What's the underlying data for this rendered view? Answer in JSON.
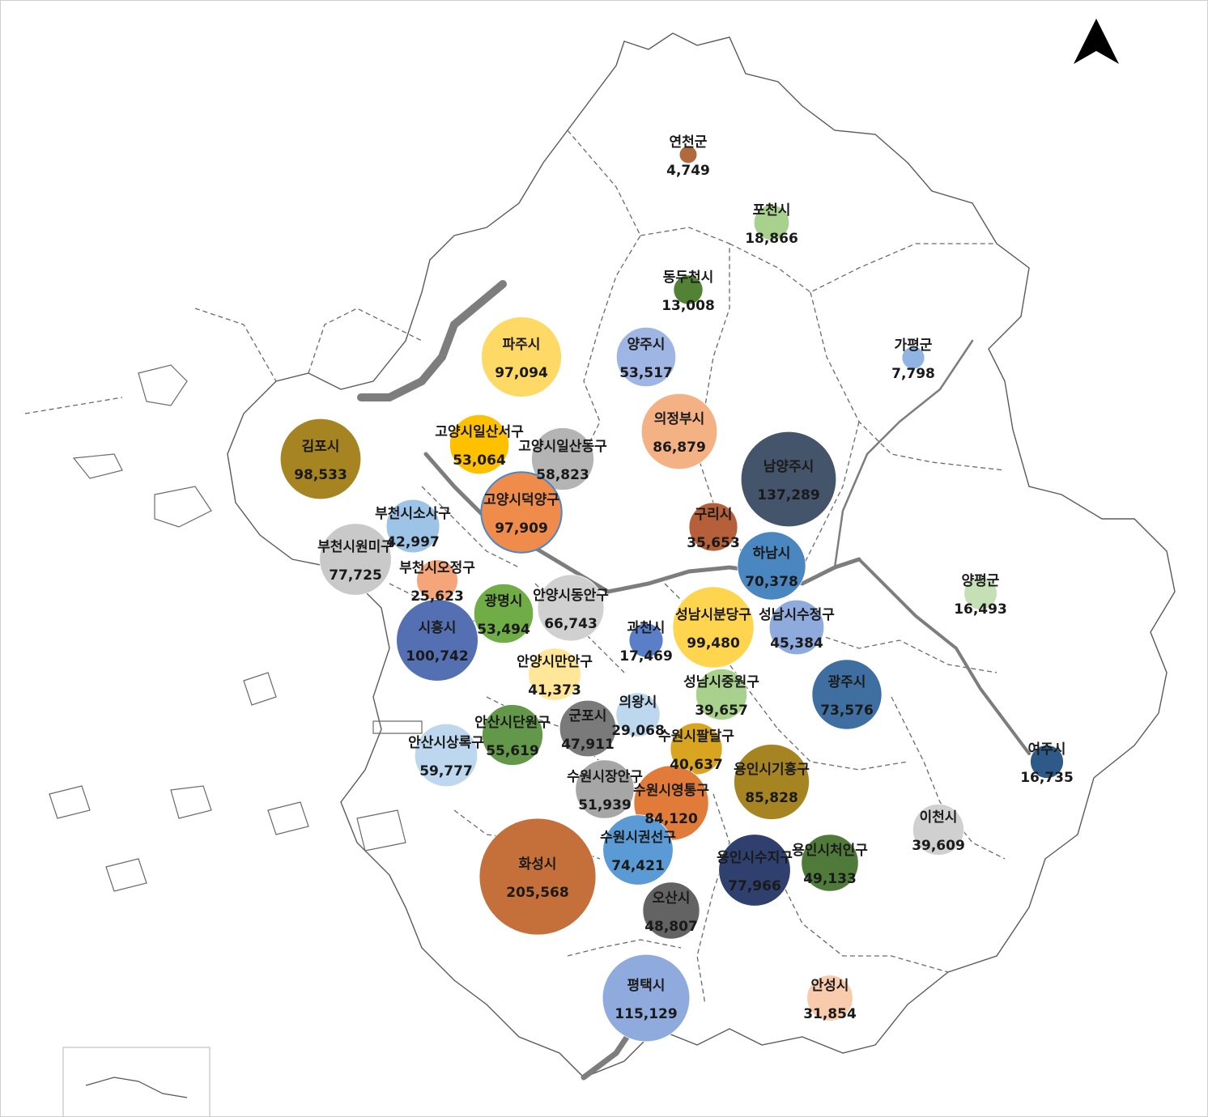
{
  "regions": [
    {
      "name": "연천군",
      "value": "4,749",
      "color": "#b06a3b"
    },
    {
      "name": "포천시",
      "value": "18,866",
      "color": "#a9d18e"
    },
    {
      "name": "동두천시",
      "value": "13,008",
      "color": "#548235"
    },
    {
      "name": "파주시",
      "value": "97,094",
      "color": "#ffd966"
    },
    {
      "name": "양주시",
      "value": "53,517",
      "color": "#9fb5e4"
    },
    {
      "name": "가평군",
      "value": "7,798",
      "color": "#8fb4e3"
    },
    {
      "name": "김포시",
      "value": "98,533",
      "color": "#a68421"
    },
    {
      "name": "고양시일산서구",
      "value": "53,064",
      "color": "#ffc000"
    },
    {
      "name": "고양시일산동구",
      "value": "58,823",
      "color": "#b4b4b4"
    },
    {
      "name": "의정부시",
      "value": "86,879",
      "color": "#f4b183"
    },
    {
      "name": "남양주시",
      "value": "137,289",
      "color": "#44546a"
    },
    {
      "name": "고양시덕양구",
      "value": "97,909",
      "color": "#f08c4b"
    },
    {
      "name": "부천시소사구",
      "value": "42,997",
      "color": "#9dc3e6"
    },
    {
      "name": "부천시원미구",
      "value": "77,725",
      "color": "#c9c9c9"
    },
    {
      "name": "구리시",
      "value": "35,653",
      "color": "#b5603b"
    },
    {
      "name": "하남시",
      "value": "70,378",
      "color": "#4a86c0"
    },
    {
      "name": "부천시오정구",
      "value": "25,623",
      "color": "#f4a57a"
    },
    {
      "name": "광명시",
      "value": "53,494",
      "color": "#70ad47"
    },
    {
      "name": "안양시동안구",
      "value": "66,743",
      "color": "#d0d0d0"
    },
    {
      "name": "성남시분당구",
      "value": "99,480",
      "color": "#ffd54f"
    },
    {
      "name": "성남시수정구",
      "value": "45,384",
      "color": "#8faadc"
    },
    {
      "name": "양평군",
      "value": "16,493",
      "color": "#c5e0b4"
    },
    {
      "name": "시흥시",
      "value": "100,742",
      "color": "#5470b2"
    },
    {
      "name": "과천시",
      "value": "17,469",
      "color": "#5b7ec9"
    },
    {
      "name": "안양시만안구",
      "value": "41,373",
      "color": "#ffe699"
    },
    {
      "name": "성남시중원구",
      "value": "39,657",
      "color": "#a9d18e"
    },
    {
      "name": "광주시",
      "value": "73,576",
      "color": "#3f6fa0"
    },
    {
      "name": "의왕시",
      "value": "29,068",
      "color": "#bdd7ee"
    },
    {
      "name": "군포시",
      "value": "47,911",
      "color": "#7a7a7a"
    },
    {
      "name": "안산시단원구",
      "value": "55,619",
      "color": "#63984b"
    },
    {
      "name": "수원시팔달구",
      "value": "40,637",
      "color": "#d9a520"
    },
    {
      "name": "안산시상록구",
      "value": "59,777",
      "color": "#bdd7ee"
    },
    {
      "name": "용인시기흥구",
      "value": "85,828",
      "color": "#a68421"
    },
    {
      "name": "여주시",
      "value": "16,735",
      "color": "#2e5a8a"
    },
    {
      "name": "수원시장안구",
      "value": "51,939",
      "color": "#a6a6a6"
    },
    {
      "name": "수원시영통구",
      "value": "84,120",
      "color": "#e07b39"
    },
    {
      "name": "이천시",
      "value": "39,609",
      "color": "#d0d0d0"
    },
    {
      "name": "수원시권선구",
      "value": "74,421",
      "color": "#5b9bd5"
    },
    {
      "name": "화성시",
      "value": "205,568",
      "color": "#c5703a"
    },
    {
      "name": "용인시수지구",
      "value": "77,966",
      "color": "#2f3f6e"
    },
    {
      "name": "용인시처인구",
      "value": "49,133",
      "color": "#4f7a3a"
    },
    {
      "name": "오산시",
      "value": "48,807",
      "color": "#636363"
    },
    {
      "name": "평택시",
      "value": "115,129",
      "color": "#8faadc"
    },
    {
      "name": "안성시",
      "value": "31,854",
      "color": "#f8cbad"
    }
  ],
  "north_arrow_icon": "north-arrow-icon"
}
